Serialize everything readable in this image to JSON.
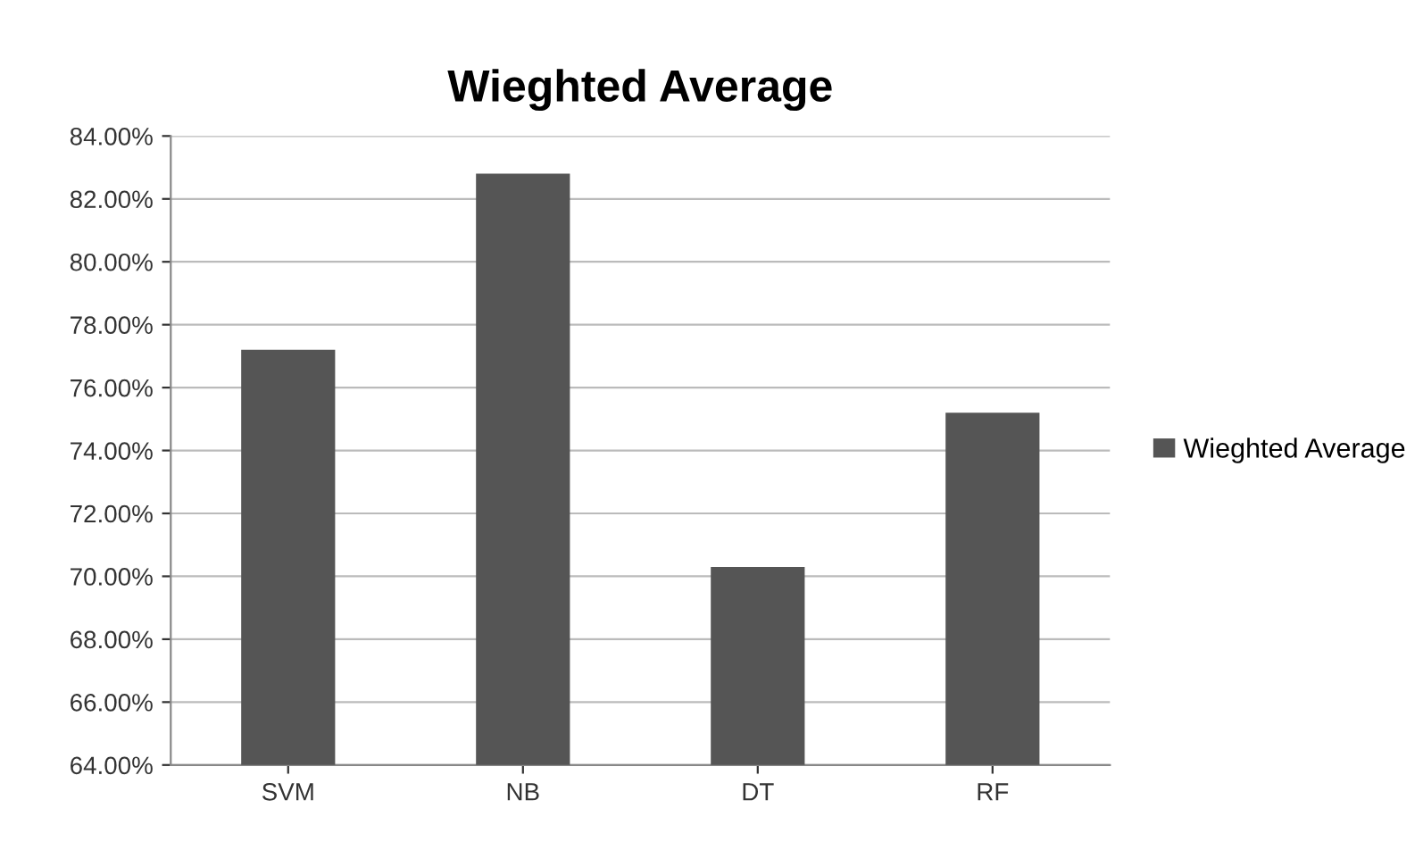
{
  "chart_data": {
    "type": "bar",
    "title": "Wieghted Average",
    "categories": [
      "SVM",
      "NB",
      "DT",
      "RF"
    ],
    "series": [
      {
        "name": "Wieghted Average",
        "color": "#555555",
        "values": [
          77.2,
          82.8,
          70.3,
          75.2
        ]
      }
    ],
    "ylim": [
      64,
      84
    ],
    "yticks": [
      {
        "value": 64,
        "label": "64.00%"
      },
      {
        "value": 66,
        "label": "66.00%"
      },
      {
        "value": 68,
        "label": "68.00%"
      },
      {
        "value": 70,
        "label": "70.00%"
      },
      {
        "value": 72,
        "label": "72.00%"
      },
      {
        "value": 74,
        "label": "74.00%"
      },
      {
        "value": 76,
        "label": "76.00%"
      },
      {
        "value": 78,
        "label": "78.00%"
      },
      {
        "value": 80,
        "label": "80.00%"
      },
      {
        "value": 82,
        "label": "82.00%"
      },
      {
        "value": 84,
        "label": "84.00%"
      }
    ],
    "grid": "y",
    "legend": "right"
  }
}
